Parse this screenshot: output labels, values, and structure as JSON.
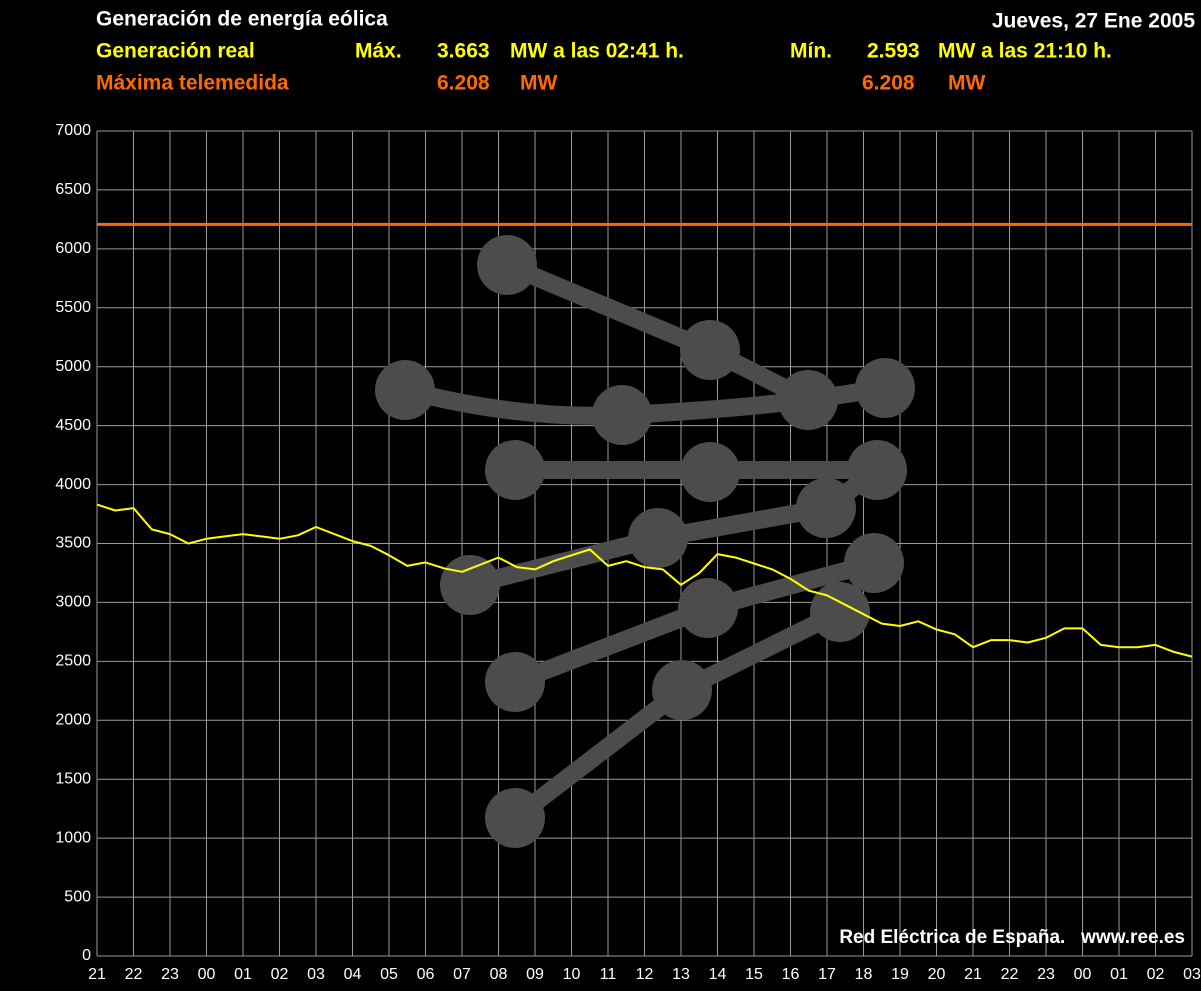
{
  "chart_data": {
    "type": "line",
    "title": "Generación de energía eólica",
    "date": "Jueves, 27 Ene 2005",
    "summary": {
      "max_label": "Máx.",
      "max_value": "3.663",
      "max_text": "MW a las 02:41 h.",
      "min_label": "Mín.",
      "min_value": "2.593",
      "min_text": "MW a las 21:10 h.",
      "ref_value_1": "6.208",
      "ref_unit_1": "MW",
      "ref_value_2": "6.208",
      "ref_unit_2": "MW"
    },
    "source": "Red Eléctrica de España.   www.ree.es",
    "categories": [
      "21",
      null,
      "22",
      null,
      "23",
      null,
      "00",
      null,
      "01",
      null,
      "02",
      null,
      "03",
      null,
      "04",
      null,
      "05",
      null,
      "06",
      null,
      "07",
      null,
      "08",
      null,
      "09",
      null,
      "10",
      null,
      "11",
      null,
      "12",
      null,
      "13",
      null,
      "14",
      null,
      "15",
      null,
      "16",
      null,
      "17",
      null,
      "18",
      null,
      "19",
      null,
      "20",
      null,
      "21",
      null,
      "22",
      null,
      "23",
      null,
      "00",
      null,
      "01",
      null,
      "02",
      null,
      "03"
    ],
    "series": [
      {
        "name": "Generación real",
        "color": "#ffff00",
        "values": [
          3830,
          3780,
          3800,
          3620,
          3580,
          3500,
          3540,
          3560,
          3580,
          3560,
          3540,
          3570,
          3640,
          3580,
          3520,
          3480,
          3400,
          3310,
          3340,
          3290,
          3260,
          3320,
          3380,
          3300,
          3280,
          3350,
          3400,
          3450,
          3310,
          3350,
          3300,
          3280,
          3150,
          3250,
          3410,
          3380,
          3330,
          3280,
          3200,
          3100,
          3060,
          2980,
          2900,
          2820,
          2800,
          2840,
          2770,
          2730,
          2620,
          2680,
          2680,
          2660,
          2700,
          2780,
          2780,
          2640,
          2620,
          2620,
          2640,
          2580,
          2540
        ]
      }
    ],
    "reference_line": {
      "name": "Máxima telemedida",
      "value": 6208,
      "color": "#ff6a00"
    },
    "ylim": [
      0,
      7000
    ],
    "yticks": [
      0,
      500,
      1000,
      1500,
      2000,
      2500,
      3000,
      3500,
      4000,
      4500,
      5000,
      5500,
      6000,
      6500,
      7000
    ],
    "grid": true
  }
}
